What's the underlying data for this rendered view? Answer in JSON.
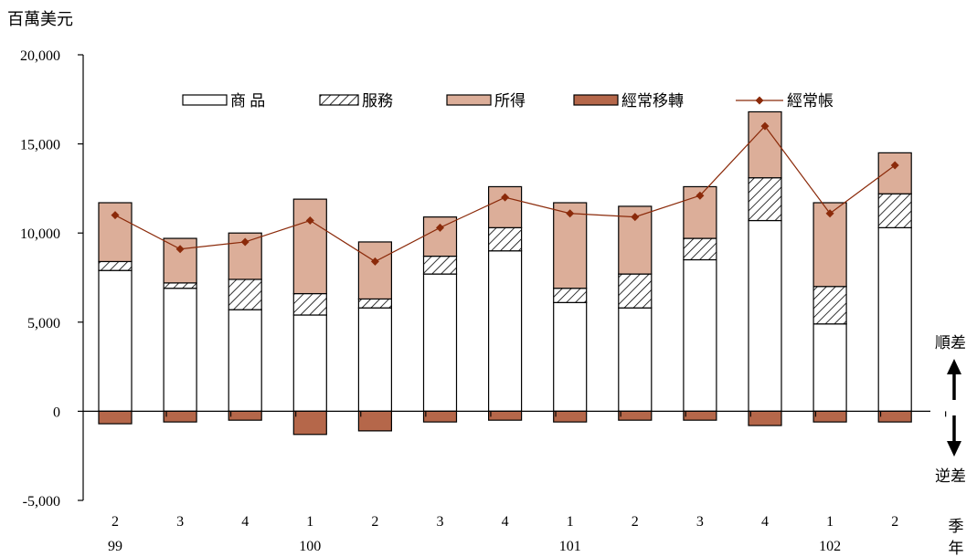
{
  "chart_data": {
    "type": "bar",
    "stacked": true,
    "y_unit": "百萬美元",
    "ylim": [
      -5000,
      20000
    ],
    "y_ticks": [
      "20,000",
      "15,000",
      "10,000",
      "5,000",
      "0",
      "-5,000"
    ],
    "y_tick_values": [
      20000,
      15000,
      10000,
      5000,
      0,
      -5000
    ],
    "categories": [
      "2",
      "3",
      "4",
      "1",
      "2",
      "3",
      "4",
      "1",
      "2",
      "3",
      "4",
      "1",
      "2"
    ],
    "year_labels": [
      {
        "label": "99",
        "index": 0
      },
      {
        "label": "100",
        "index": 3
      },
      {
        "label": "101",
        "index": 7
      },
      {
        "label": "102",
        "index": 11
      }
    ],
    "axis_end_label": [
      "季",
      "年"
    ],
    "direction_labels": {
      "up": "順差",
      "down": "逆差"
    },
    "series": [
      {
        "name": "商 品",
        "kind": "bar",
        "style": "white",
        "color": "#ffffff",
        "values": [
          7900,
          6900,
          5700,
          5400,
          5800,
          7700,
          9000,
          6100,
          5800,
          8500,
          10700,
          4900,
          10300
        ]
      },
      {
        "name": "服務",
        "kind": "bar",
        "style": "hatch",
        "color": "#ffffff",
        "values": [
          500,
          300,
          1700,
          1200,
          500,
          1000,
          1300,
          800,
          1900,
          1200,
          2400,
          2100,
          1900
        ]
      },
      {
        "name": "所得",
        "kind": "bar",
        "style": "solid",
        "color": "#dcae99",
        "values": [
          3300,
          2500,
          2600,
          5300,
          3200,
          2200,
          2300,
          4800,
          3800,
          2900,
          3700,
          4700,
          2300
        ]
      },
      {
        "name": "經常移轉",
        "kind": "bar",
        "style": "solid",
        "color": "#b5674a",
        "values": [
          -700,
          -600,
          -500,
          -1300,
          -1100,
          -600,
          -500,
          -600,
          -500,
          -500,
          -800,
          -600,
          -600
        ]
      },
      {
        "name": "經常帳",
        "kind": "line",
        "color": "#8b2a0a",
        "values": [
          11000,
          9100,
          9500,
          10700,
          8400,
          10300,
          12000,
          11100,
          10900,
          12100,
          16000,
          11100,
          13800
        ]
      }
    ],
    "legend_position": "top"
  }
}
